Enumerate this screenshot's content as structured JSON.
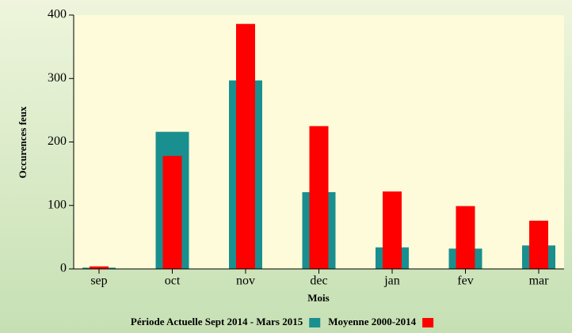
{
  "chart_data": {
    "type": "bar",
    "y_label": "Occurences feux",
    "x_label": "Mois",
    "categories": [
      "sep",
      "oct",
      "nov",
      "dec",
      "jan",
      "fev",
      "mar"
    ],
    "series": [
      {
        "name": "Période Actuelle Sept 2014 - Mars 2015",
        "color": "#1a8f8f",
        "values": [
          2,
          216,
          297,
          121,
          34,
          32,
          37
        ]
      },
      {
        "name": "Moyenne 2000-2014",
        "color": "#ff0000",
        "values": [
          4,
          178,
          386,
          225,
          122,
          99,
          76
        ]
      }
    ],
    "ylim": [
      0,
      400
    ],
    "yticks": [
      0,
      100,
      200,
      300,
      400
    ]
  }
}
